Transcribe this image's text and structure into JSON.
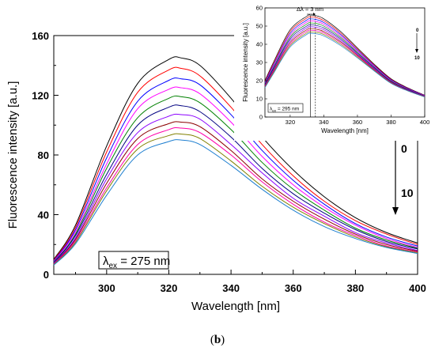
{
  "figure": {
    "caption_prefix": "(",
    "caption_letter": "b",
    "caption_suffix": ")"
  },
  "chart_data": [
    {
      "type": "line",
      "xlabel": "Wavelength [nm]",
      "ylabel": "Fluorescence intensity [a.u.]",
      "xlim": [
        283,
        400
      ],
      "ylim": [
        0,
        160
      ],
      "xticks": [
        300,
        320,
        340,
        360,
        380,
        400
      ],
      "yticks": [
        0,
        40,
        80,
        120,
        160
      ],
      "annotation": {
        "lambda": "λ",
        "sub": "ex",
        "text": " = 275 nm"
      },
      "arrow_labels": {
        "start": "0",
        "end": "10"
      },
      "peak_x": 324,
      "x": [
        283,
        290,
        300,
        310,
        320,
        324,
        330,
        340,
        350,
        360,
        370,
        380,
        390,
        400
      ],
      "series": [
        {
          "color": "#000000",
          "values": [
            10,
            33,
            86,
            128,
            144,
            145,
            140,
            118,
            92,
            70,
            52,
            38,
            28,
            21
          ]
        },
        {
          "color": "#ff0000",
          "values": [
            9.5,
            31.5,
            82,
            122,
            137,
            138,
            133,
            112,
            87,
            66,
            49,
            36,
            27,
            20
          ]
        },
        {
          "color": "#0000ff",
          "values": [
            9,
            30,
            78,
            116,
            130,
            131,
            127,
            107,
            83,
            63,
            47,
            34,
            25,
            19
          ]
        },
        {
          "color": "#ff00ff",
          "values": [
            8.6,
            28.5,
            74,
            111,
            124,
            125,
            121,
            102,
            79,
            60,
            45,
            33,
            24,
            18
          ]
        },
        {
          "color": "#008000",
          "values": [
            8.2,
            27,
            71,
            105,
            118,
            119,
            115,
            97,
            75,
            57,
            43,
            31,
            23,
            17.5
          ]
        },
        {
          "color": "#000080",
          "values": [
            7.8,
            26,
            67,
            100,
            112,
            113,
            109,
            92,
            71,
            54,
            41,
            30,
            22,
            17
          ]
        },
        {
          "color": "#8b00ff",
          "values": [
            7.4,
            24.5,
            64,
            95,
            106,
            107,
            104,
            87,
            68,
            51,
            39,
            28,
            21,
            16
          ]
        },
        {
          "color": "#8b0000",
          "values": [
            7,
            23.5,
            61,
            91,
            101,
            102,
            99,
            83,
            64,
            49,
            37,
            27,
            20,
            15.5
          ]
        },
        {
          "color": "#ff00aa",
          "values": [
            6.8,
            22.5,
            58,
            87,
            97,
            98,
            95,
            80,
            62,
            47,
            35,
            26,
            19,
            15
          ]
        },
        {
          "color": "#808000",
          "values": [
            6.5,
            21.5,
            56,
            84,
            93,
            94,
            91,
            76,
            59,
            45,
            34,
            25,
            18.5,
            14.5
          ]
        },
        {
          "color": "#1e7fd0",
          "values": [
            6.2,
            20.5,
            53,
            80,
            89,
            90,
            87,
            73,
            57,
            43,
            32,
            24,
            18,
            14
          ]
        }
      ]
    },
    {
      "type": "line",
      "xlabel": "Wavelength [nm]",
      "ylabel": "Fluorescence intensity [a.u.]",
      "xlim": [
        305,
        400
      ],
      "ylim": [
        0,
        60
      ],
      "xticks": [
        320,
        340,
        360,
        380,
        400
      ],
      "yticks": [
        0,
        10,
        20,
        30,
        40,
        50,
        60
      ],
      "annotation": {
        "lambda": "λ",
        "sub": "ex",
        "text": " = 295 nm"
      },
      "shift_label": "Δλ = 3 nm",
      "arrow_labels": {
        "start": "0",
        "end": "10"
      },
      "peak_lines_x": [
        332,
        335
      ],
      "x": [
        305,
        310,
        320,
        330,
        332,
        335,
        340,
        350,
        360,
        370,
        380,
        390,
        400
      ],
      "series": [
        {
          "color": "#000000",
          "values": [
            20,
            30,
            48,
            55.5,
            56,
            55.8,
            54,
            47,
            38,
            29,
            21,
            16,
            12
          ]
        },
        {
          "color": "#ff0000",
          "values": [
            19.5,
            29.3,
            47,
            54.5,
            55,
            54.8,
            53,
            46.2,
            37.4,
            28.6,
            20.7,
            15.8,
            11.9
          ]
        },
        {
          "color": "#0000ff",
          "values": [
            19,
            28.5,
            46,
            53.4,
            53.9,
            53.7,
            52,
            45.4,
            36.8,
            28.2,
            20.4,
            15.6,
            11.8
          ]
        },
        {
          "color": "#ff00ff",
          "values": [
            18.6,
            27.8,
            45,
            52.3,
            52.8,
            52.6,
            51,
            44.6,
            36.2,
            27.8,
            20.1,
            15.4,
            11.7
          ]
        },
        {
          "color": "#008000",
          "values": [
            18.2,
            27.1,
            44,
            51.2,
            51.7,
            51.5,
            50,
            43.8,
            35.6,
            27.4,
            19.8,
            15.2,
            11.6
          ]
        },
        {
          "color": "#000080",
          "values": [
            17.8,
            26.5,
            43,
            50.1,
            50.6,
            50.4,
            49,
            43,
            35,
            27,
            19.5,
            15,
            11.5
          ]
        },
        {
          "color": "#8b00ff",
          "values": [
            17.4,
            25.9,
            42,
            49.1,
            49.6,
            49.4,
            48,
            42.2,
            34.5,
            26.6,
            19.3,
            14.8,
            11.4
          ]
        },
        {
          "color": "#8b0000",
          "values": [
            17,
            25.3,
            41,
            48.1,
            48.6,
            48.4,
            47,
            41.4,
            34,
            26.2,
            19.1,
            14.6,
            11.3
          ]
        },
        {
          "color": "#ff00aa",
          "values": [
            16.7,
            24.8,
            40.1,
            47.2,
            47.7,
            47.5,
            46.2,
            40.7,
            33.5,
            25.9,
            18.9,
            14.5,
            11.2
          ]
        },
        {
          "color": "#808000",
          "values": [
            16.4,
            24.3,
            39.3,
            46.3,
            46.8,
            46.6,
            45.4,
            40,
            33,
            25.6,
            18.7,
            14.4,
            11.1
          ]
        },
        {
          "color": "#1e7fd0",
          "values": [
            16.1,
            23.8,
            38.5,
            45.5,
            46,
            45.8,
            44.6,
            39.3,
            32.5,
            25.3,
            18.5,
            14.3,
            11
          ]
        }
      ]
    }
  ]
}
